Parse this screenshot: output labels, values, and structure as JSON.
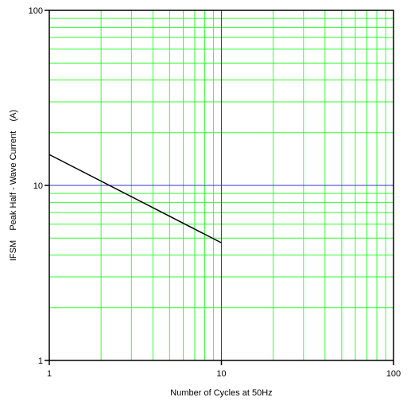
{
  "chart_data": {
    "type": "line",
    "x_scale": "log",
    "y_scale": "log",
    "xlim": [
      1,
      100
    ],
    "ylim": [
      1,
      100
    ],
    "x_ticks": [
      1,
      10,
      100
    ],
    "y_ticks": [
      1,
      10,
      100
    ],
    "x_tick_labels": [
      "1",
      "10",
      "100"
    ],
    "y_tick_labels": [
      "1",
      "10",
      "100"
    ],
    "xlabel": "Number of Cycles at 50Hz",
    "ylabel": "IFSM    Peak Half - Wave Current    (A)",
    "grid": true,
    "colors": {
      "grid": "#33ff33",
      "decade_lines": "#3333cc",
      "frame": "#000000",
      "series": "#000000"
    },
    "series": [
      {
        "x": [
          1,
          10
        ],
        "y": [
          15,
          4.7
        ]
      }
    ]
  }
}
